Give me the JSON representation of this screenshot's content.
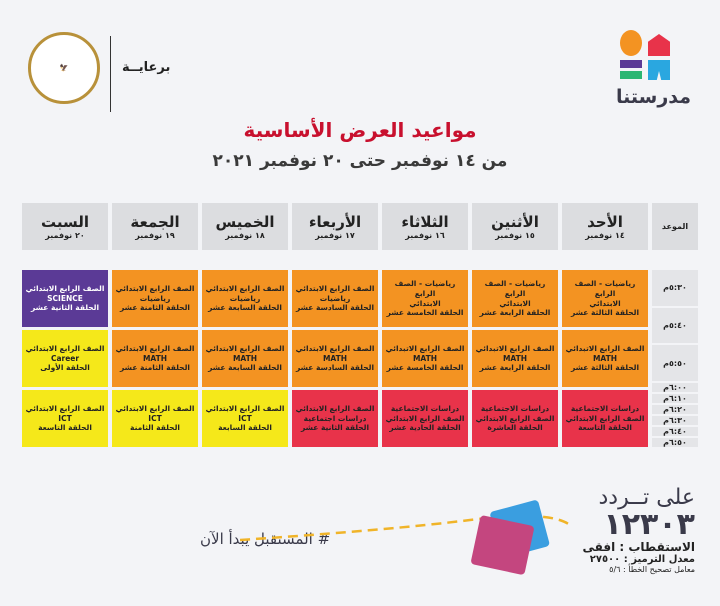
{
  "brand": {
    "name": "مدرستنا",
    "colors": [
      "#f39322",
      "#e8334a",
      "#5b3a96",
      "#2aa7e0",
      "#2bb673"
    ]
  },
  "sponsor": {
    "label": "برعايــة",
    "seal_text": "MINISTRY OF EDUCATION AND TECHNICAL EDUCATION"
  },
  "title": "مواعيد العرض الأساسية",
  "subtitle": "من ١٤ نوفمبر حتى ٢٠ نوفمبر ٢٠٢١",
  "schedule": {
    "time_header": "الموعد",
    "times": [
      "٥:٣٠م",
      "٥:٤٠م",
      "٥:٥٠م",
      "٦:٠٠م",
      "٦:١٠م",
      "٦:٢٠م",
      "٦:٣٠م",
      "٦:٤٠م",
      "٦:٥٠م"
    ],
    "colors": {
      "orange": "#f39322",
      "purple": "#5b3a96",
      "yellow": "#f5e81a",
      "red": "#e8334a"
    },
    "days": [
      {
        "name": "الأحد",
        "date": "١٤ نوفمبر",
        "cells": [
          {
            "color": "orange",
            "lines": [
              "رياضيات - الصف الرابع",
              "الابتدائي",
              "الحلقة الثالثة عشر"
            ]
          },
          {
            "color": "orange",
            "lines": [
              "الصف الرابع الاتبدائي",
              "MATH",
              "الحلقة الثالثة عشر"
            ]
          },
          {
            "color": "red",
            "lines": [
              "دراسات الاجتماعية",
              "الصف الرابع الابتدائي",
              "الحلقة التاسعة"
            ]
          }
        ]
      },
      {
        "name": "الأثنين",
        "date": "١٥ نوفمبر",
        "cells": [
          {
            "color": "orange",
            "lines": [
              "رياضيات - الصف الرابع",
              "الابتدائي",
              "الحلقة الرابعة عشر"
            ]
          },
          {
            "color": "orange",
            "lines": [
              "الصف الرابع الاتبدائي",
              "MATH",
              "الحلقة الرابعة عشر"
            ]
          },
          {
            "color": "red",
            "lines": [
              "دراسات الاجتماعية",
              "الصف الرابع الابتدائي",
              "الحلقة العاشرة"
            ]
          }
        ]
      },
      {
        "name": "الثلاثاء",
        "date": "١٦ نوفمبر",
        "cells": [
          {
            "color": "orange",
            "lines": [
              "رياضيات - الصف الرابع",
              "الابتدائي",
              "الحلقة الخامسة عشر"
            ]
          },
          {
            "color": "orange",
            "lines": [
              "الصف الرابع الاتبدائي",
              "MATH",
              "الحلقة الخامسة عشر"
            ]
          },
          {
            "color": "red",
            "lines": [
              "دراسات الاجتماعية",
              "الصف الرابع الابتدائي",
              "الحلقة الحادية عشر"
            ]
          }
        ]
      },
      {
        "name": "الأربعاء",
        "date": "١٧ نوفمبر",
        "cells": [
          {
            "color": "orange",
            "lines": [
              "الصف الرابع الابتدائي",
              "رياضيات",
              "الحلقة السادسة عشر"
            ]
          },
          {
            "color": "orange",
            "lines": [
              "الصف الرابع الابتدائي",
              "MATH",
              "الحلقة السادسة عشر"
            ]
          },
          {
            "color": "red",
            "lines": [
              "الصف الرابع الابتدائي",
              "دراسات اجتماعية",
              "الحلقة الثانية عشر"
            ]
          }
        ]
      },
      {
        "name": "الخميس",
        "date": "١٨ نوفمبر",
        "cells": [
          {
            "color": "orange",
            "lines": [
              "الصف الرابع الابتدائي",
              "رياضيات",
              "الحلقة السابعة عشر"
            ]
          },
          {
            "color": "orange",
            "lines": [
              "الصف الرابع الابتدائي",
              "MATH",
              "الحلقة السابعة عشر"
            ]
          },
          {
            "color": "yellow",
            "lines": [
              "الصف الرابع الابتدائي",
              "ICT",
              "الحلقة السابعة"
            ]
          }
        ]
      },
      {
        "name": "الجمعة",
        "date": "١٩ نوفمبر",
        "cells": [
          {
            "color": "orange",
            "lines": [
              "الصف الرابع الابتدائي",
              "رياضيات",
              "الحلقة الثامنة عشر"
            ]
          },
          {
            "color": "orange",
            "lines": [
              "الصف الرابع الابتدائي",
              "MATH",
              "الحلقة الثامنة عشر"
            ]
          },
          {
            "color": "yellow",
            "lines": [
              "الصف الرابع الابتدائي",
              "ICT",
              "الحلقة الثامنة"
            ]
          }
        ]
      },
      {
        "name": "السبت",
        "date": "٢٠ نوفمبر",
        "cells": [
          {
            "color": "purple",
            "lines": [
              "الصف الرابع الابتدائي",
              "SCIENCE",
              "الحلقة الثانية عشر"
            ]
          },
          {
            "color": "yellow",
            "lines": [
              "الصف الرابع الابتدائي",
              "Career",
              "الحلقة الأولى"
            ]
          },
          {
            "color": "yellow",
            "lines": [
              "الصف الرابع الابتدائي",
              "ICT",
              "الحلقة التاسعة"
            ]
          }
        ]
      }
    ]
  },
  "frequency": {
    "label": "على تــردد",
    "value": "١٢٣٠٣",
    "polarization": "الاستقطاب : افقى",
    "symbol_rate": "معدل الترميز : ٢٧٥٠٠",
    "fec": "معامل تصحيح الخطأ : ٥/٦"
  },
  "hashtag": "# المستقبل يبدأ الآن"
}
